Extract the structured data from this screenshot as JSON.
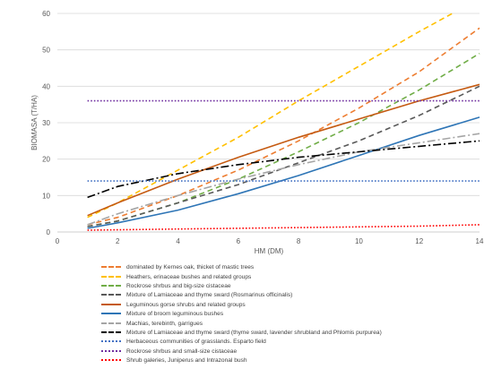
{
  "chart_data": {
    "type": "line",
    "title": "",
    "xlabel": "HM (DM)",
    "ylabel": "BIOMASA (T/HA)",
    "xlim": [
      0,
      14
    ],
    "ylim": [
      0,
      60
    ],
    "xticks": [
      0,
      2,
      4,
      6,
      8,
      10,
      12,
      14
    ],
    "yticks": [
      0,
      10,
      20,
      30,
      40,
      50,
      60
    ],
    "grid": "horizontal",
    "legend_position": "bottom",
    "series": [
      {
        "name": "dominated by Kernes oak, thicket of mastic trees",
        "color": "#ed7d31",
        "dash": "dashed",
        "x": [
          1,
          2,
          4,
          6,
          8,
          10,
          12,
          14
        ],
        "y": [
          2,
          4,
          10,
          17,
          25,
          34,
          44,
          56
        ]
      },
      {
        "name": "Heathers, erinaceae bushes and related groups",
        "color": "#ffc000",
        "dash": "dashed",
        "x": [
          1,
          2,
          4,
          6,
          8,
          10,
          12,
          13.1
        ],
        "y": [
          4,
          8,
          17,
          26,
          36,
          45.5,
          55,
          60
        ]
      },
      {
        "name": "Rockrose shrbus and big-size cistaceae",
        "color": "#70ad47",
        "dash": "dashed",
        "x": [
          1,
          2,
          4,
          6,
          8,
          10,
          12,
          14
        ],
        "y": [
          1.5,
          3,
          8,
          14.5,
          22,
          30,
          39,
          49
        ]
      },
      {
        "name": "Mixture of Lamiaceae and thyme sward (Rosmarinus officinalis)",
        "color": "#595959",
        "dash": "dashed",
        "x": [
          1,
          2,
          4,
          6,
          8,
          10,
          12,
          14
        ],
        "y": [
          1.5,
          3,
          8,
          13,
          19,
          25,
          32,
          40
        ]
      },
      {
        "name": "Leguminous gorse shrubs and related groups",
        "color": "#c55a11",
        "dash": "solid",
        "x": [
          1,
          2,
          4,
          6,
          8,
          10,
          12,
          14
        ],
        "y": [
          4.5,
          8,
          14.5,
          20.5,
          26,
          31,
          36,
          40.5
        ]
      },
      {
        "name": "Mixture of broom leguminous bushes",
        "color": "#2e75b6",
        "dash": "solid",
        "x": [
          1,
          2,
          4,
          6,
          8,
          10,
          12,
          14
        ],
        "y": [
          1,
          2.5,
          6,
          10.5,
          15.5,
          21,
          26.5,
          31.5
        ]
      },
      {
        "name": "Machias, terebinth, garrigues",
        "color": "#a5a5a5",
        "dash": "dashdot",
        "x": [
          1,
          2,
          4,
          6,
          8,
          10,
          12,
          14
        ],
        "y": [
          2,
          5,
          10,
          14.5,
          18.5,
          22,
          24.5,
          27
        ]
      },
      {
        "name": "Mixture of Lamiaceae and thyme sward (thyme sward, lavender shrubland and Phlomis purpurea)",
        "color": "#000000",
        "dash": "dashdot",
        "x": [
          1,
          2,
          4,
          6,
          8,
          10,
          12,
          14
        ],
        "y": [
          9.5,
          12.5,
          16,
          18.5,
          20.5,
          22,
          23.5,
          25
        ]
      },
      {
        "name": "Herbaceous communities of grasslands. Esparto field",
        "color": "#4472c4",
        "dash": "dotted",
        "x": [
          1,
          14
        ],
        "y": [
          14,
          14
        ]
      },
      {
        "name": "Rockrose shrbus and small-size cistaceae",
        "color": "#7030a0",
        "dash": "dotted",
        "x": [
          1,
          14
        ],
        "y": [
          36,
          36
        ]
      },
      {
        "name": "Shrub galeries, Juniperus and Intrazonal bush",
        "color": "#ff0000",
        "dash": "dotted",
        "x": [
          1,
          4,
          8,
          12,
          14
        ],
        "y": [
          0.5,
          0.8,
          1.2,
          1.6,
          2
        ]
      }
    ]
  }
}
